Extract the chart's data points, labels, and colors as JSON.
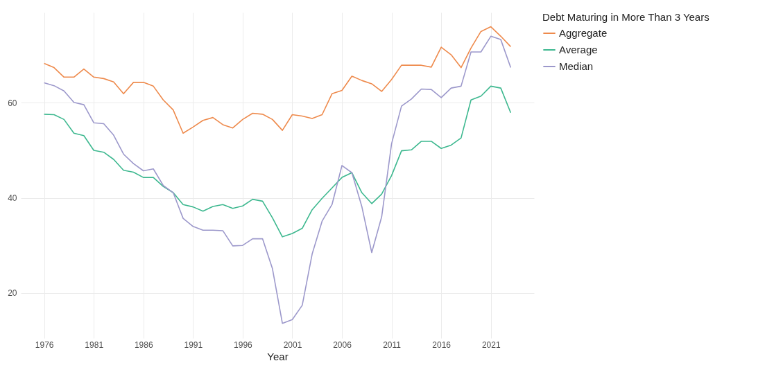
{
  "chart_data": {
    "type": "line",
    "xlabel": "Year",
    "legend_title": "Debt Maturing in More Than 3 Years",
    "x": [
      1976,
      1977,
      1978,
      1979,
      1980,
      1981,
      1982,
      1983,
      1984,
      1985,
      1986,
      1987,
      1988,
      1989,
      1990,
      1991,
      1992,
      1993,
      1994,
      1995,
      1996,
      1997,
      1998,
      1999,
      2000,
      2001,
      2002,
      2003,
      2004,
      2005,
      2006,
      2007,
      2008,
      2009,
      2010,
      2011,
      2012,
      2013,
      2014,
      2015,
      2016,
      2017,
      2018,
      2019,
      2020,
      2021,
      2022,
      2023
    ],
    "series": [
      {
        "name": "Aggregate",
        "color": "#ee8a4c",
        "values": [
          68.3,
          67.4,
          65.4,
          65.4,
          67.1,
          65.4,
          65.1,
          64.4,
          61.9,
          64.3,
          64.3,
          63.5,
          60.6,
          58.5,
          53.6,
          54.9,
          56.3,
          56.9,
          55.4,
          54.7,
          56.5,
          57.8,
          57.6,
          56.5,
          54.2,
          57.5,
          57.2,
          56.7,
          57.5,
          61.9,
          62.6,
          65.6,
          64.7,
          64.0,
          62.4,
          64.9,
          67.9,
          67.9,
          67.9,
          67.5,
          71.7,
          70.1,
          67.4,
          71.5,
          75.0,
          76.0,
          74.0,
          71.8
        ]
      },
      {
        "name": "Average",
        "color": "#3db88f",
        "values": [
          57.6,
          57.5,
          56.5,
          53.6,
          53.1,
          50.0,
          49.6,
          48.1,
          45.8,
          45.4,
          44.3,
          44.3,
          42.4,
          41.1,
          38.6,
          38.1,
          37.2,
          38.2,
          38.6,
          37.8,
          38.3,
          39.7,
          39.3,
          35.8,
          31.8,
          32.5,
          33.6,
          37.5,
          39.9,
          42.1,
          44.3,
          45.3,
          41.1,
          38.8,
          40.8,
          44.7,
          49.9,
          50.1,
          51.9,
          51.9,
          50.4,
          51.1,
          52.6,
          60.6,
          61.4,
          63.5,
          63.1,
          57.9
        ]
      },
      {
        "name": "Median",
        "color": "#9c98cb",
        "values": [
          64.2,
          63.6,
          62.5,
          60.1,
          59.6,
          55.8,
          55.6,
          53.2,
          49.2,
          47.2,
          45.7,
          46.1,
          42.6,
          41.1,
          35.7,
          34.0,
          33.2,
          33.2,
          33.1,
          29.9,
          30.0,
          31.4,
          31.4,
          25.1,
          13.6,
          14.4,
          17.4,
          28.2,
          35.1,
          38.6,
          46.8,
          45.3,
          38.2,
          28.5,
          36.0,
          51.4,
          59.3,
          60.8,
          62.9,
          62.8,
          61.1,
          63.1,
          63.5,
          70.7,
          70.7,
          74.0,
          73.3,
          67.4
        ]
      }
    ],
    "xlim": [
      1973.65,
      2025.35
    ],
    "ylim": [
      10.5,
      79
    ],
    "xticks": [
      1976,
      1981,
      1986,
      1991,
      1996,
      2001,
      2006,
      2011,
      2016,
      2021
    ],
    "yticks": [
      20,
      40,
      60
    ],
    "grid": true,
    "legend": "right"
  }
}
